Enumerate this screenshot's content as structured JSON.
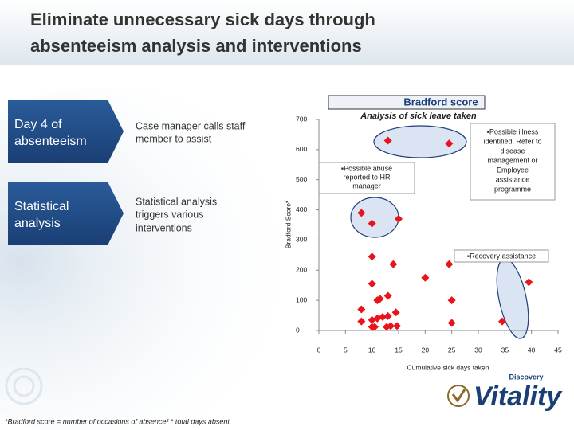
{
  "slide": {
    "title": [
      "Eliminate unnecessary sick days through",
      "absenteeism analysis and interventions"
    ],
    "rows": [
      {
        "label": [
          "Day 4 of",
          "absenteeism"
        ],
        "text": [
          "Case manager calls staff",
          "member to assist"
        ]
      },
      {
        "label": [
          "Statistical",
          "analysis"
        ],
        "text": [
          "Statistical analysis",
          "triggers various",
          "interventions"
        ]
      }
    ],
    "panel_title": "Bradford score",
    "footnote": "*Bradford score = number of occasions of absence² * total days absent",
    "logo": {
      "brand": "Discovery",
      "name": "Vitality"
    }
  },
  "chart_data": {
    "type": "scatter",
    "title": "Analysis of sick leave taken",
    "x_label": "Cumulative sick days taken",
    "y_label": "Bradford Score*",
    "xlim": [
      0,
      45
    ],
    "ylim": [
      0,
      700
    ],
    "xticks": [
      0,
      5,
      10,
      15,
      20,
      25,
      30,
      35,
      40,
      45
    ],
    "yticks": [
      0,
      100,
      200,
      300,
      400,
      500,
      600,
      700
    ],
    "series": [
      {
        "color": "#e8141b",
        "x": [
          13,
          24.5,
          8,
          10,
          15,
          10,
          14,
          24.5,
          20,
          10,
          39.5,
          13,
          11.5,
          11,
          8,
          25,
          14.5,
          8,
          10,
          11,
          12,
          13,
          10,
          10.5,
          12.75,
          13.5,
          14.7,
          25,
          34.5
        ],
        "values": [
          630,
          620,
          390,
          355,
          370,
          245,
          220,
          220,
          175,
          155,
          160,
          115,
          105,
          100,
          70,
          100,
          60,
          30,
          35,
          40,
          45,
          48,
          12,
          12,
          12,
          15,
          15,
          25,
          30
        ]
      }
    ],
    "annotations": [
      [
        "▪Possible illness",
        "identified. Refer to",
        "disease",
        "management or",
        "Employee",
        "assistance",
        "programme"
      ],
      [
        "▪Possible abuse",
        "reported to HR",
        "manager"
      ],
      [
        "▪Recovery assistance"
      ]
    ]
  }
}
